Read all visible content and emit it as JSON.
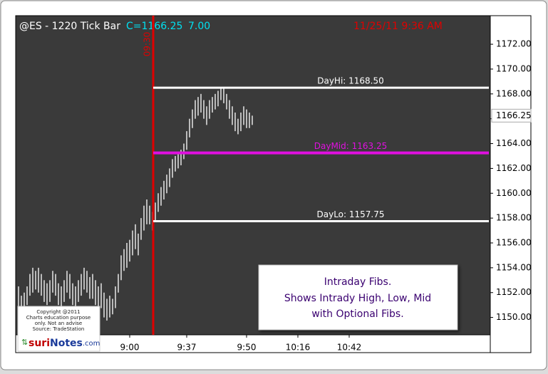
{
  "chart_data": {
    "type": "range-bar",
    "title": "@ES - 1220 Tick Bar",
    "close_text": "C=1166.25",
    "change_text": "7.00",
    "timestamp": "11/25/11 9:36 AM",
    "bar_color": "#e6e6e6",
    "high": [
      1152.5,
      1151.75,
      1152,
      1152.5,
      1153.5,
      1154,
      1153.75,
      1154,
      1153.5,
      1153,
      1152.75,
      1153,
      1153.75,
      1153.5,
      1152.75,
      1152.5,
      1153,
      1153.75,
      1153.5,
      1152.75,
      1152.5,
      1153,
      1153.5,
      1154,
      1153.75,
      1153.25,
      1153.5,
      1153,
      1152.5,
      1152.75,
      1152,
      1151.5,
      1151.75,
      1151.5,
      1152.5,
      1153.5,
      1155,
      1155.5,
      1156,
      1156.25,
      1157,
      1157.5,
      1156.75,
      1158,
      1159,
      1159.5,
      1159,
      1158.5,
      1159.25,
      1160,
      1160.5,
      1161,
      1161.5,
      1162,
      1162.75,
      1163,
      1163.25,
      1163.5,
      1164,
      1165,
      1166,
      1166.75,
      1167.5,
      1167.75,
      1168,
      1167.5,
      1167,
      1167.5,
      1167.75,
      1168,
      1168.25,
      1168.5,
      1168.5,
      1168,
      1167.5,
      1167,
      1166.5,
      1166,
      1166.5,
      1167,
      1166.75,
      1166.5,
      1166.25
    ],
    "low": [
      1150.75,
      1150.5,
      1150.75,
      1151,
      1151.75,
      1152,
      1152.25,
      1152,
      1151.75,
      1151.25,
      1151,
      1151.25,
      1152,
      1151.75,
      1151,
      1150.75,
      1151.25,
      1152,
      1151.5,
      1151,
      1150.75,
      1151.25,
      1151.75,
      1152.25,
      1152,
      1151.5,
      1151.5,
      1151,
      1150.5,
      1150.75,
      1150,
      1149.75,
      1150,
      1150.25,
      1150.75,
      1152,
      1153,
      1153.75,
      1154,
      1154.5,
      1155,
      1155.5,
      1155,
      1156.25,
      1157,
      1157.5,
      1157.5,
      1157,
      1157.75,
      1158.5,
      1159,
      1159.5,
      1160,
      1160.5,
      1161.25,
      1161.75,
      1162,
      1162.25,
      1162.75,
      1163.5,
      1164.5,
      1165.25,
      1166,
      1166.25,
      1166.5,
      1166,
      1165.5,
      1166,
      1166.5,
      1166.75,
      1167,
      1167.5,
      1167.25,
      1166.75,
      1166,
      1165.5,
      1165,
      1164.75,
      1165,
      1165.5,
      1165.25,
      1165.25,
      1165.5
    ],
    "xlim": [
      -1,
      165.5
    ],
    "xticks": [
      {
        "value": 39,
        "label": "9:00"
      },
      {
        "value": 59,
        "label": "9:37"
      },
      {
        "value": 80,
        "label": "9:50"
      },
      {
        "value": 98,
        "label": "10:16"
      },
      {
        "value": 116,
        "label": "10:42"
      }
    ],
    "ylim": [
      1148.6,
      1174.3
    ],
    "yticks": [
      {
        "value": 1150,
        "label": "1150.00"
      },
      {
        "value": 1152,
        "label": "1152.00"
      },
      {
        "value": 1154,
        "label": "1154.00"
      },
      {
        "value": 1156,
        "label": "1156.00"
      },
      {
        "value": 1158,
        "label": "1158.00"
      },
      {
        "value": 1160,
        "label": "1160.00"
      },
      {
        "value": 1162,
        "label": "1162.00"
      },
      {
        "value": 1164,
        "label": "1164.00"
      },
      {
        "value": 1166,
        "label": "1166.00"
      },
      {
        "value": 1168,
        "label": "1168.00"
      },
      {
        "value": 1170,
        "label": "1170.00"
      },
      {
        "value": 1172,
        "label": "1172.00"
      }
    ],
    "last": {
      "value": 1166.25,
      "label": "1166.25"
    },
    "session_open": {
      "x": 47.25,
      "label": "09:30",
      "color": "#e00000"
    },
    "levels": [
      {
        "value": 1168.5,
        "label": "DayHi: 1168.50",
        "color": "#ffffff"
      },
      {
        "value": 1163.25,
        "label": "DayMid: 1163.25",
        "color": "#e010e0"
      },
      {
        "value": 1157.75,
        "label": "DayLo: 1157.75",
        "color": "#ffffff"
      }
    ],
    "info_box": [
      "Intraday Fibs.",
      "Shows Intrady High, Low, Mid",
      "with Optional Fibs."
    ],
    "credit_box": [
      "Copyright @2011",
      "Charts education purpose",
      "only. Not an advise",
      "Source: TradeStation"
    ],
    "logo": {
      "prefix": "suri",
      "main": "Notes",
      "suffix": ".com"
    }
  }
}
